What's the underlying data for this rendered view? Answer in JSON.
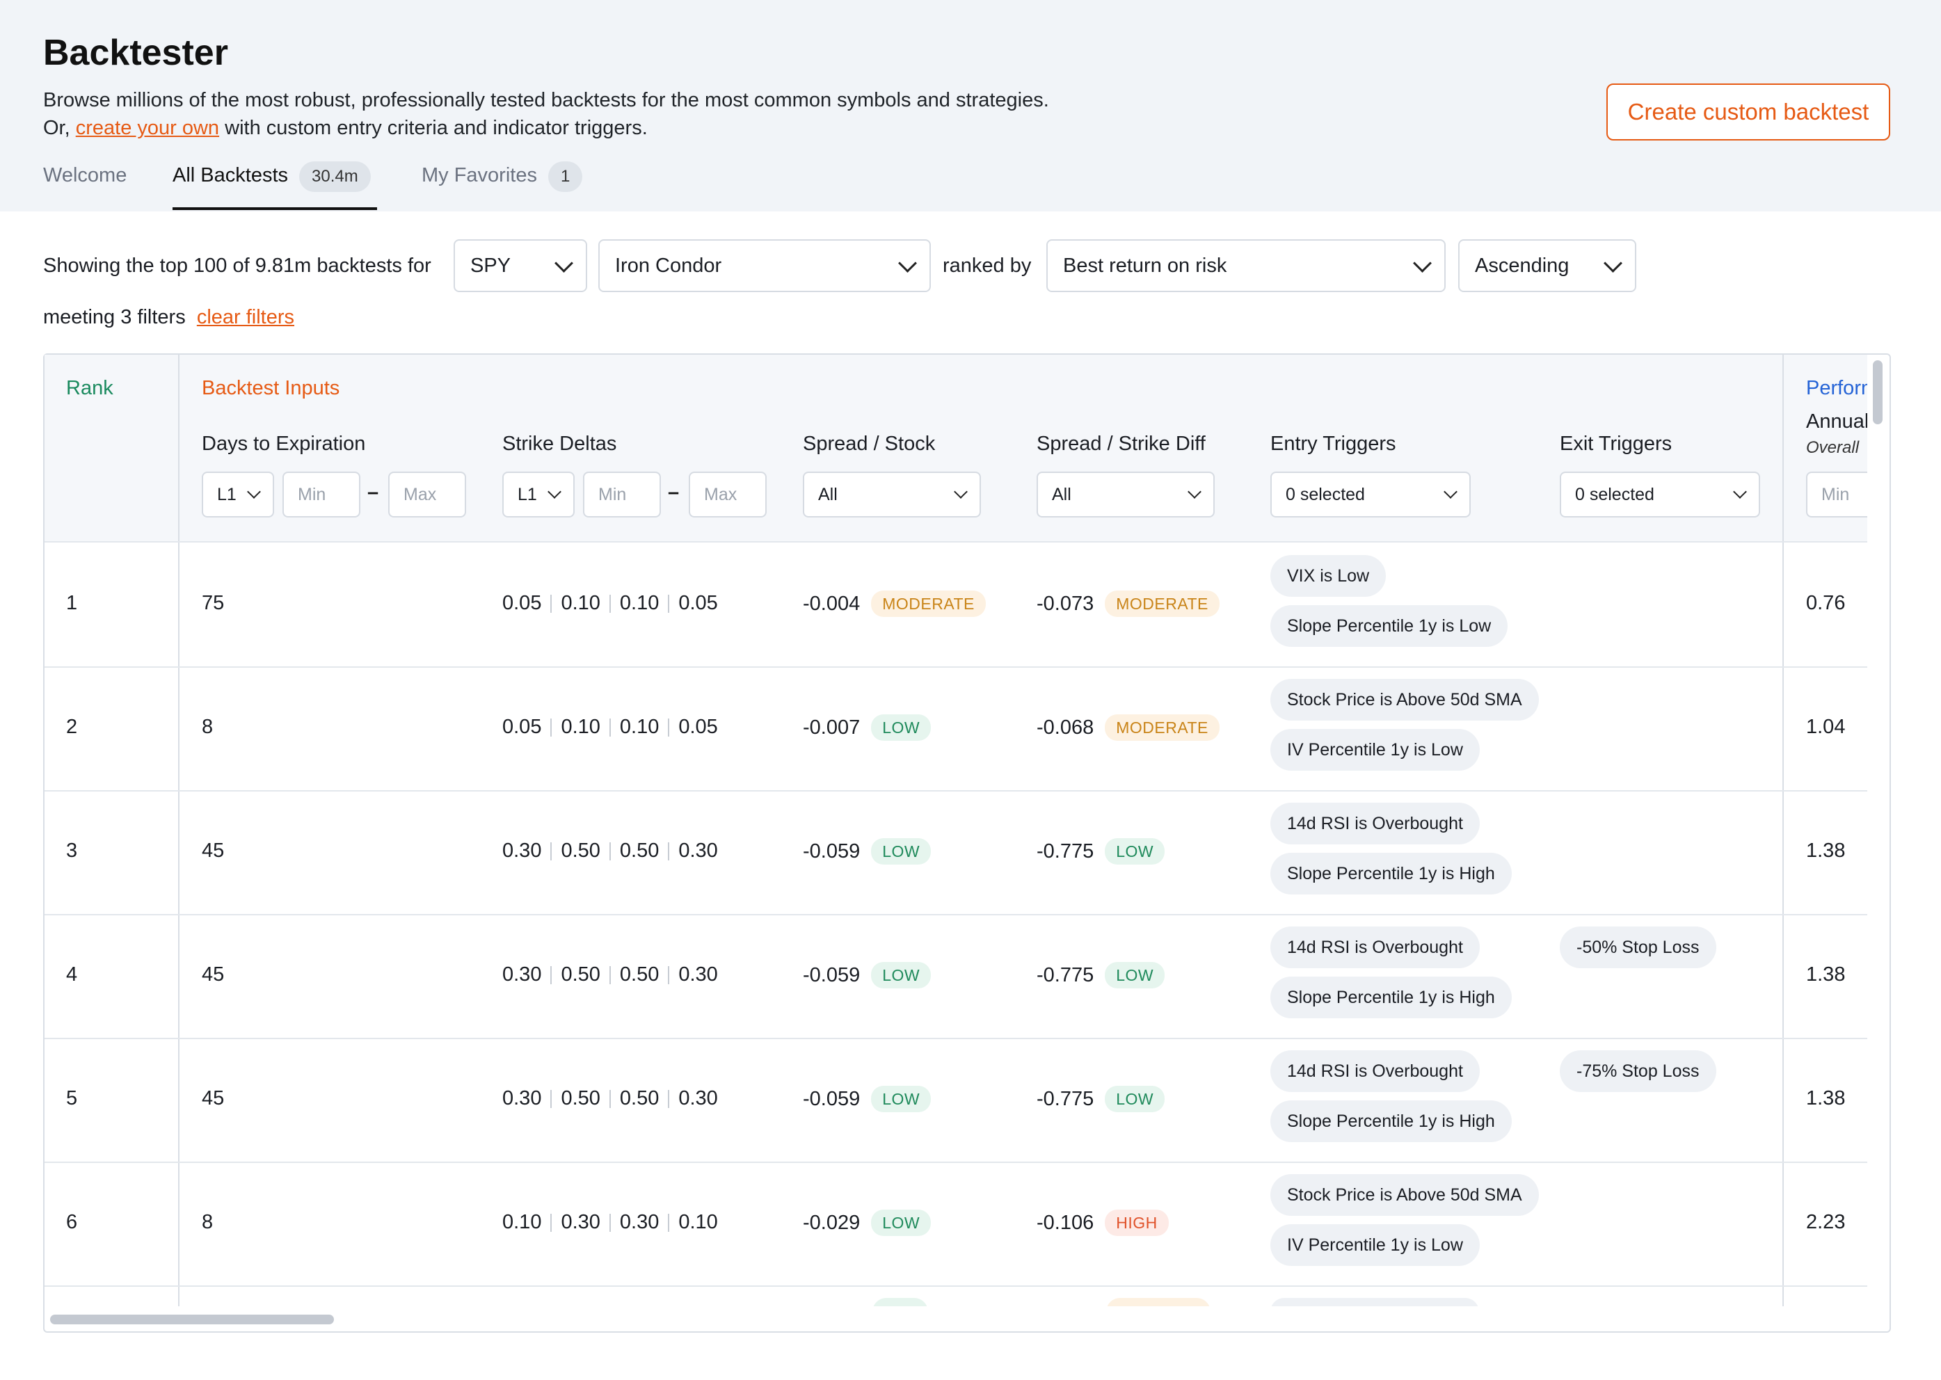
{
  "header": {
    "title": "Backtester",
    "subtitle_line1": "Browse millions of the most robust, professionally tested backtests for the most common symbols and strategies.",
    "subtitle_line2_pre": "Or, ",
    "subtitle_line2_link": "create your own",
    "subtitle_line2_post": " with custom entry criteria and indicator triggers.",
    "create_button": "Create custom backtest"
  },
  "tabs": [
    {
      "label": "Welcome",
      "active": false
    },
    {
      "label": "All Backtests",
      "badge": "30.4m",
      "active": true
    },
    {
      "label": "My Favorites",
      "badge": "1",
      "active": false
    }
  ],
  "controls": {
    "showing_text": "Showing the top 100 of 9.81m backtests for",
    "symbol": "SPY",
    "strategy": "Iron Condor",
    "ranked_by_text": "ranked by",
    "rank_metric": "Best return on risk",
    "order": "Ascending",
    "filters_text": "meeting 3 filters",
    "clear_filters": "clear filters"
  },
  "table": {
    "group_rank": "Rank",
    "group_inputs": "Backtest Inputs",
    "group_perf": "Performance",
    "columns": {
      "dte": "Days to Expiration",
      "deltas": "Strike Deltas",
      "spread_stock": "Spread / Stock",
      "spread_strike": "Spread / Strike Diff",
      "entry": "Entry Triggers",
      "exit": "Exit Triggers",
      "annual": "Annualized Return",
      "overall": "Overall"
    },
    "filters": {
      "dte_leg": "L1",
      "dte_min": "Min",
      "dte_max": "Max",
      "delta_leg": "L1",
      "delta_min": "Min",
      "delta_max": "Max",
      "spread_stock": "All",
      "spread_strike": "All",
      "entry": "0 selected",
      "exit": "0 selected",
      "perf_min": "Min",
      "range_sep": "–"
    },
    "rows": [
      {
        "rank": "1",
        "dte": "75",
        "deltas": [
          "0.05",
          "0.10",
          "0.10",
          "0.05"
        ],
        "ss": "-0.004",
        "ss_level": "MODERATE",
        "sd": "-0.073",
        "sd_level": "MODERATE",
        "entry": [
          "VIX is Low",
          "Slope Percentile 1y is Low"
        ],
        "exit": [],
        "perf": "0.76"
      },
      {
        "rank": "2",
        "dte": "8",
        "deltas": [
          "0.05",
          "0.10",
          "0.10",
          "0.05"
        ],
        "ss": "-0.007",
        "ss_level": "LOW",
        "sd": "-0.068",
        "sd_level": "MODERATE",
        "entry": [
          "Stock Price is Above 50d SMA",
          "IV Percentile 1y is Low"
        ],
        "exit": [],
        "perf": "1.04"
      },
      {
        "rank": "3",
        "dte": "45",
        "deltas": [
          "0.30",
          "0.50",
          "0.50",
          "0.30"
        ],
        "ss": "-0.059",
        "ss_level": "LOW",
        "sd": "-0.775",
        "sd_level": "LOW",
        "entry": [
          "14d RSI is Overbought",
          "Slope Percentile 1y is High"
        ],
        "exit": [],
        "perf": "1.38"
      },
      {
        "rank": "4",
        "dte": "45",
        "deltas": [
          "0.30",
          "0.50",
          "0.50",
          "0.30"
        ],
        "ss": "-0.059",
        "ss_level": "LOW",
        "sd": "-0.775",
        "sd_level": "LOW",
        "entry": [
          "14d RSI is Overbought",
          "Slope Percentile 1y is High"
        ],
        "exit": [
          "-50% Stop Loss"
        ],
        "perf": "1.38"
      },
      {
        "rank": "5",
        "dte": "45",
        "deltas": [
          "0.30",
          "0.50",
          "0.50",
          "0.30"
        ],
        "ss": "-0.059",
        "ss_level": "LOW",
        "sd": "-0.775",
        "sd_level": "LOW",
        "entry": [
          "14d RSI is Overbought",
          "Slope Percentile 1y is High"
        ],
        "exit": [
          "-75% Stop Loss"
        ],
        "perf": "1.38"
      },
      {
        "rank": "6",
        "dte": "8",
        "deltas": [
          "0.10",
          "0.30",
          "0.30",
          "0.10"
        ],
        "ss": "-0.029",
        "ss_level": "LOW",
        "sd": "-0.106",
        "sd_level": "HIGH",
        "entry": [
          "Stock Price is Above 50d SMA",
          "IV Percentile 1y is Low"
        ],
        "exit": [],
        "perf": "2.23"
      }
    ]
  }
}
